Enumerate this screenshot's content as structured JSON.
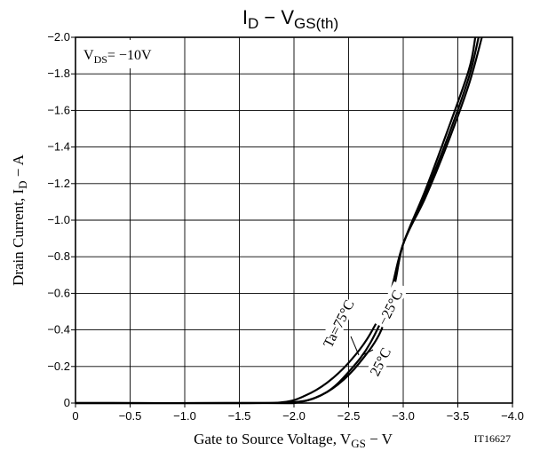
{
  "chart_data": {
    "type": "line",
    "title_main": "I",
    "title_main_sub": "D",
    "title_dash": " − ",
    "title_param": "V",
    "title_param_sub": "GS(th)",
    "xlabel_text": "Gate to Source Voltage, V",
    "xlabel_sub": "GS",
    "xlabel_unit": " − V",
    "ylabel_text": "Drain Current, I",
    "ylabel_sub": "D",
    "ylabel_unit": " − A",
    "condition_text": "V",
    "condition_sub": "DS",
    "condition_value": "= −10V",
    "figure_code": "IT16627",
    "xlim": [
      0,
      -4.0
    ],
    "ylim": [
      0,
      -2.0
    ],
    "x_ticks": [
      0,
      -0.5,
      -1.0,
      -1.5,
      -2.0,
      -2.5,
      -3.0,
      -3.5,
      -4.0
    ],
    "x_tick_labels": [
      "0",
      "−0.5",
      "−1.0",
      "−1.5",
      "−2.0",
      "−2.5",
      "−3.0",
      "−3.5",
      "−4.0"
    ],
    "y_ticks": [
      0,
      -0.2,
      -0.4,
      -0.6,
      -0.8,
      -1.0,
      -1.2,
      -1.4,
      -1.6,
      -1.8,
      -2.0
    ],
    "y_tick_labels": [
      "0",
      "−0.2",
      "−0.4",
      "−0.6",
      "−0.8",
      "−1.0",
      "−1.2",
      "−1.4",
      "−1.6",
      "−1.8",
      "−2.0"
    ],
    "grid": true,
    "series": [
      {
        "name": "Ta=75°C",
        "x": [
          0,
          -1.5,
          -1.9,
          -2.1,
          -2.3,
          -2.5,
          -2.7,
          -2.9,
          -3.0,
          -3.2,
          -3.4,
          -3.6,
          -3.66
        ],
        "y": [
          0,
          0,
          -0.005,
          -0.04,
          -0.11,
          -0.22,
          -0.38,
          -0.63,
          -0.87,
          -1.16,
          -1.48,
          -1.82,
          -2.0
        ]
      },
      {
        "name": "25°C",
        "x": [
          0,
          -1.6,
          -2.0,
          -2.2,
          -2.4,
          -2.6,
          -2.8,
          -2.9,
          -3.0,
          -3.2,
          -3.4,
          -3.6,
          -3.69
        ],
        "y": [
          0,
          0,
          -0.005,
          -0.03,
          -0.1,
          -0.22,
          -0.4,
          -0.64,
          -0.87,
          -1.14,
          -1.44,
          -1.78,
          -2.0
        ]
      },
      {
        "name": "−25°C",
        "x": [
          0,
          -1.7,
          -2.05,
          -2.3,
          -2.5,
          -2.7,
          -2.9,
          -3.0,
          -3.2,
          -3.4,
          -3.6,
          -3.72
        ],
        "y": [
          0,
          0,
          -0.005,
          -0.06,
          -0.17,
          -0.33,
          -0.6,
          -0.87,
          -1.12,
          -1.41,
          -1.74,
          -2.0
        ]
      }
    ],
    "annotations": [
      "Ta=75°C",
      "25°C",
      "−25°C"
    ]
  }
}
